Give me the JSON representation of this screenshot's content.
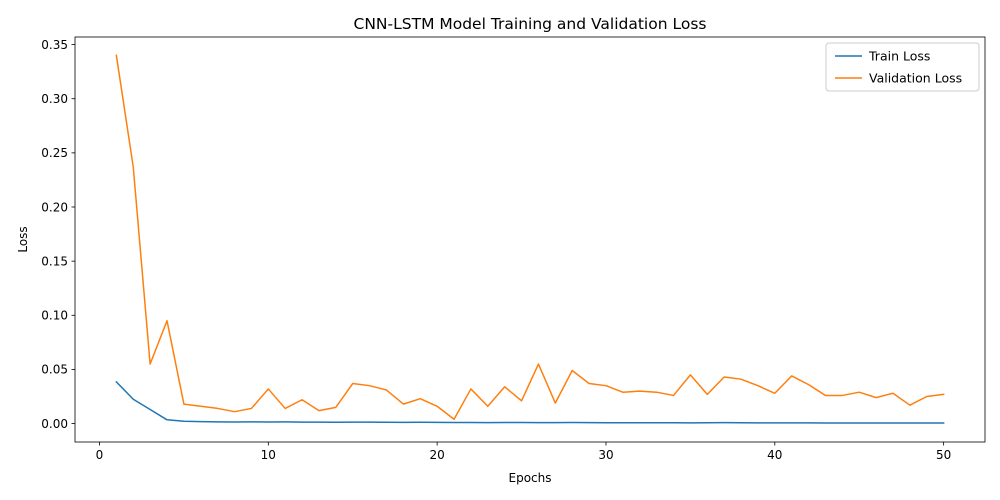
{
  "chart_data": {
    "type": "line",
    "title": "CNN-LSTM Model Training and Validation Loss",
    "xlabel": "Epochs",
    "ylabel": "Loss",
    "xlim": [
      -1.45,
      52.45
    ],
    "ylim": [
      -0.017,
      0.357
    ],
    "xticks": [
      0,
      10,
      20,
      30,
      40,
      50
    ],
    "xtick_labels": [
      "0",
      "10",
      "20",
      "30",
      "40",
      "50"
    ],
    "yticks": [
      0.0,
      0.05,
      0.1,
      0.15,
      0.2,
      0.25,
      0.3,
      0.35
    ],
    "ytick_labels": [
      "0.00",
      "0.05",
      "0.10",
      "0.15",
      "0.20",
      "0.25",
      "0.30",
      "0.35"
    ],
    "grid": false,
    "legend_position": "top-right",
    "x": [
      1,
      2,
      3,
      4,
      5,
      6,
      7,
      8,
      9,
      10,
      11,
      12,
      13,
      14,
      15,
      16,
      17,
      18,
      19,
      20,
      21,
      22,
      23,
      24,
      25,
      26,
      27,
      28,
      29,
      30,
      31,
      32,
      33,
      34,
      35,
      36,
      37,
      38,
      39,
      40,
      41,
      42,
      43,
      44,
      45,
      46,
      47,
      48,
      49,
      50
    ],
    "series": [
      {
        "name": "Train Loss",
        "color": "#1f77b4",
        "values": [
          0.0385,
          0.0225,
          0.013,
          0.0035,
          0.0022,
          0.0018,
          0.0016,
          0.0015,
          0.0016,
          0.0015,
          0.0016,
          0.0014,
          0.0013,
          0.0012,
          0.0013,
          0.0014,
          0.0012,
          0.0011,
          0.0012,
          0.0011,
          0.001,
          0.001,
          0.0009,
          0.001,
          0.001,
          0.0009,
          0.0009,
          0.001,
          0.0009,
          0.0008,
          0.0008,
          0.0008,
          0.0008,
          0.0008,
          0.0007,
          0.0008,
          0.0009,
          0.0008,
          0.0007,
          0.0007,
          0.0007,
          0.0007,
          0.0006,
          0.0006,
          0.0006,
          0.0006,
          0.0005,
          0.0005,
          0.0005,
          0.0005
        ]
      },
      {
        "name": "Validation Loss",
        "color": "#ff7f0e",
        "values": [
          0.34,
          0.237,
          0.055,
          0.095,
          0.018,
          0.016,
          0.014,
          0.011,
          0.014,
          0.032,
          0.014,
          0.022,
          0.012,
          0.015,
          0.037,
          0.035,
          0.031,
          0.018,
          0.023,
          0.016,
          0.004,
          0.032,
          0.016,
          0.034,
          0.021,
          0.055,
          0.019,
          0.049,
          0.037,
          0.035,
          0.029,
          0.03,
          0.029,
          0.026,
          0.045,
          0.027,
          0.043,
          0.041,
          0.035,
          0.028,
          0.044,
          0.036,
          0.026,
          0.026,
          0.029,
          0.024,
          0.028,
          0.017,
          0.025,
          0.027
        ]
      }
    ]
  }
}
